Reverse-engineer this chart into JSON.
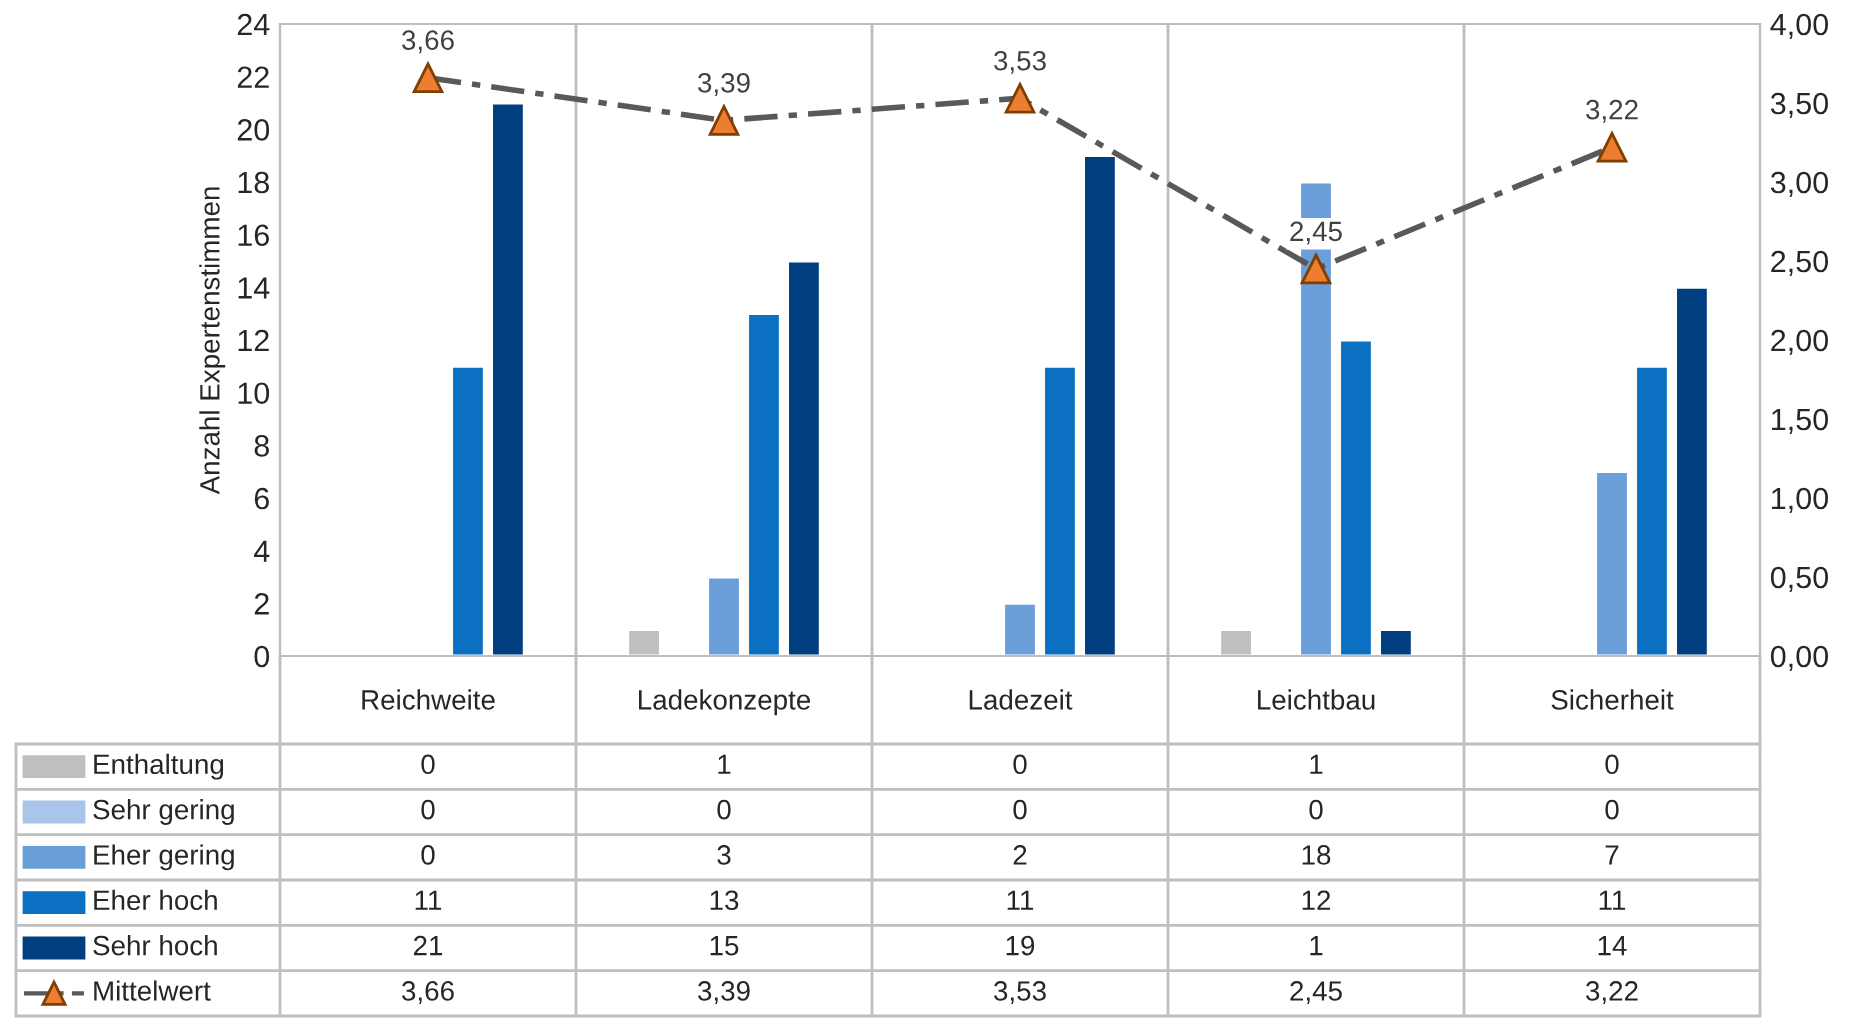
{
  "chart_data": {
    "type": "bar",
    "ylabel": "Anzahl Expertenstimmen",
    "categories": [
      "Reichweite",
      "Ladekonzepte",
      "Ladezeit",
      "Leichtbau",
      "Sicherheit"
    ],
    "series": [
      {
        "name": "Enthaltung",
        "color": "#bfbfbf",
        "values": [
          0,
          1,
          0,
          1,
          0
        ],
        "value_labels": [
          "0",
          "1",
          "0",
          "1",
          "0"
        ]
      },
      {
        "name": "Sehr gering",
        "color": "#a9c5ea",
        "values": [
          0,
          0,
          0,
          0,
          0
        ],
        "value_labels": [
          "0",
          "0",
          "0",
          "0",
          "0"
        ]
      },
      {
        "name": "Eher gering",
        "color": "#6b9fd9",
        "values": [
          0,
          3,
          2,
          18,
          7
        ],
        "value_labels": [
          "0",
          "3",
          "2",
          "18",
          "7"
        ]
      },
      {
        "name": "Eher hoch",
        "color": "#0b70c1",
        "values": [
          11,
          13,
          11,
          12,
          11
        ],
        "value_labels": [
          "11",
          "13",
          "11",
          "12",
          "11"
        ]
      },
      {
        "name": "Sehr hoch",
        "color": "#003f7f",
        "values": [
          21,
          15,
          19,
          1,
          14
        ],
        "value_labels": [
          "21",
          "15",
          "19",
          "1",
          "14"
        ]
      },
      {
        "name": "Mittelwert",
        "type": "line",
        "axis": "y2",
        "color": "#595959",
        "marker": "triangle",
        "colors": [
          "#ed7d31",
          "#ed7d31",
          "#ed7d31",
          "#ed7d31",
          "#ed7d31"
        ],
        "line_style": "dashed",
        "values": [
          3.66,
          3.39,
          3.53,
          2.45,
          3.22
        ],
        "value_labels": [
          "3,66",
          "3,39",
          "3,53",
          "2,45",
          "3,22"
        ],
        "data_labels": true
      }
    ],
    "ylim": [
      0,
      24
    ],
    "yticks": [
      0,
      2,
      4,
      6,
      8,
      10,
      12,
      14,
      16,
      18,
      20,
      22,
      24
    ],
    "y2lim": [
      0,
      4
    ],
    "y2ticks": [
      {
        "value": 0,
        "label": "0,00"
      },
      {
        "value": 0.5,
        "label": "0,50"
      },
      {
        "value": 1,
        "label": "1,00"
      },
      {
        "value": 1.5,
        "label": "1,50"
      },
      {
        "value": 2,
        "label": "2,00"
      },
      {
        "value": 2.5,
        "label": "2,50"
      },
      {
        "value": 3,
        "label": "3,00"
      },
      {
        "value": 3.5,
        "label": "3,50"
      },
      {
        "value": 4,
        "label": "4,00"
      }
    ],
    "grid": "x",
    "legend": "bottom left"
  }
}
